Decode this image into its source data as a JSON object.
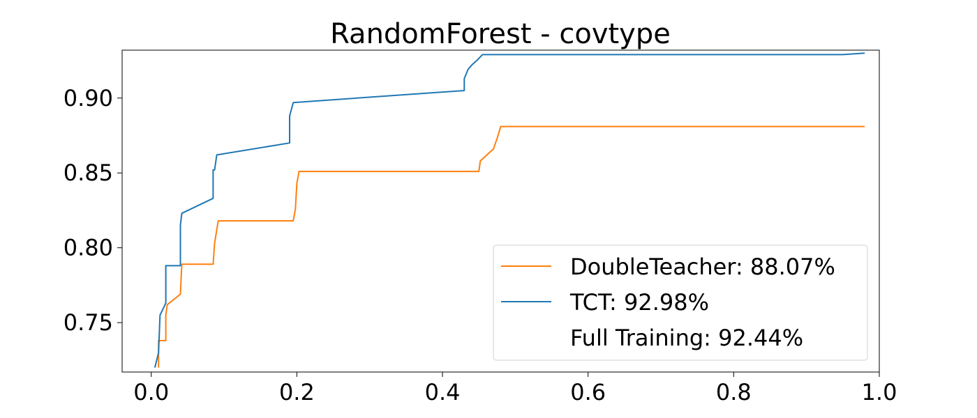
{
  "chart_data": {
    "type": "line",
    "title": "RandomForest - covtype",
    "xlabel": "",
    "ylabel": "",
    "xlim": [
      -0.04,
      1.0
    ],
    "ylim": [
      0.717,
      0.932
    ],
    "xticks": [
      0.0,
      0.2,
      0.4,
      0.6,
      0.8,
      1.0
    ],
    "xtick_labels": [
      "0.0",
      "0.2",
      "0.4",
      "0.6",
      "0.8",
      "1.0"
    ],
    "yticks": [
      0.75,
      0.8,
      0.85,
      0.9
    ],
    "ytick_labels": [
      "0.75",
      "0.80",
      "0.85",
      "0.90"
    ],
    "grid": false,
    "legend_position": "bottom-right",
    "series": [
      {
        "name": "DoubleTeacher: 88.07%",
        "color": "#ff7f0e",
        "x": [
          0.01,
          0.01,
          0.02,
          0.02,
          0.022,
          0.04,
          0.042,
          0.085,
          0.087,
          0.09,
          0.092,
          0.195,
          0.198,
          0.2,
          0.203,
          0.45,
          0.452,
          0.47,
          0.475,
          0.48,
          0.98
        ],
        "y": [
          0.72,
          0.738,
          0.738,
          0.755,
          0.762,
          0.769,
          0.789,
          0.789,
          0.803,
          0.812,
          0.818,
          0.818,
          0.826,
          0.843,
          0.851,
          0.851,
          0.858,
          0.866,
          0.873,
          0.881,
          0.881
        ]
      },
      {
        "name": "TCT: 92.98%",
        "color": "#1f77b4",
        "x": [
          0.005,
          0.01,
          0.012,
          0.02,
          0.02,
          0.04,
          0.04,
          0.042,
          0.085,
          0.085,
          0.087,
          0.09,
          0.19,
          0.19,
          0.195,
          0.43,
          0.43,
          0.435,
          0.44,
          0.447,
          0.455,
          0.95,
          0.98
        ],
        "y": [
          0.72,
          0.73,
          0.755,
          0.763,
          0.788,
          0.788,
          0.815,
          0.823,
          0.833,
          0.852,
          0.852,
          0.862,
          0.87,
          0.888,
          0.897,
          0.905,
          0.913,
          0.919,
          0.922,
          0.925,
          0.929,
          0.929,
          0.93
        ]
      },
      {
        "name": "Full Training: 92.44%",
        "color": "#ffffff",
        "x": [],
        "y": []
      }
    ]
  }
}
